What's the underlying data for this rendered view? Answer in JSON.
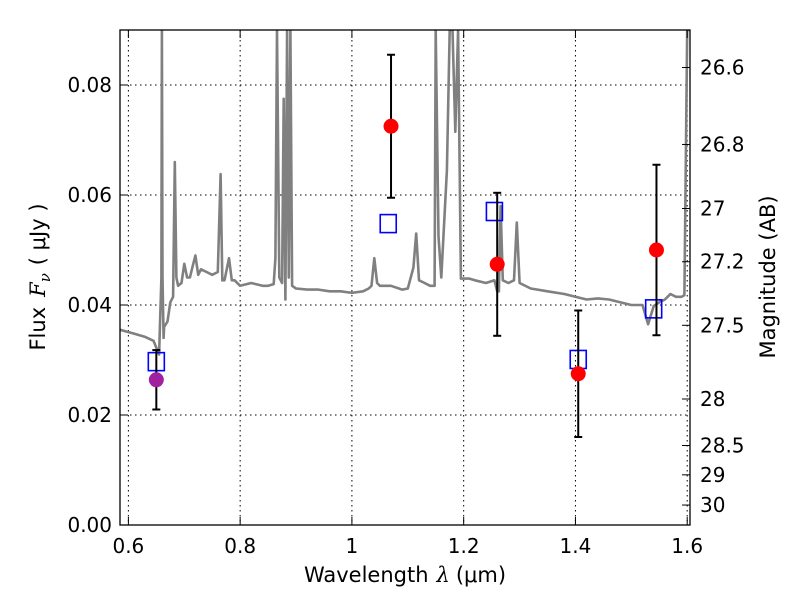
{
  "chart_data": {
    "type": "scatter",
    "xlabel_text": "Wavelength",
    "xlabel_symbol": "λ",
    "xlabel_unit": "(μm)",
    "ylabel_text": "Flux",
    "ylabel_symbol": "F",
    "ylabel_subscript": "ν",
    "ylabel_unit": "( μJy )",
    "y2label": "Magnitude (AB)",
    "xlim": [
      0.585,
      1.605
    ],
    "ylim": [
      0.0,
      0.09
    ],
    "x_ticks": [
      0.6,
      0.8,
      1.0,
      1.2,
      1.4,
      1.6
    ],
    "x_tick_labels": [
      "0.6",
      "0.8",
      "1",
      "1.2",
      "1.4",
      "1.6"
    ],
    "y_ticks": [
      0.0,
      0.02,
      0.04,
      0.06,
      0.08
    ],
    "y_tick_labels": [
      "0.00",
      "0.02",
      "0.04",
      "0.06",
      "0.08"
    ],
    "mag_ticks": [
      26.6,
      26.8,
      27.0,
      27.2,
      27.5,
      28.0,
      28.5,
      29.0,
      30.0
    ],
    "mag_tick_labels": [
      "26.6",
      "26.8",
      "27",
      "27.2",
      "27.5",
      "28",
      "28.5",
      "29",
      "30"
    ],
    "grid": true,
    "colors": {
      "spectrum": "#808080",
      "observed": "#ff0000",
      "observed_optical": "#a020a0",
      "model": "#0000ff",
      "errorbar": "#000000"
    },
    "series": [
      {
        "kind": "observed",
        "points": [
          {
            "x": 0.65,
            "y": 0.0264,
            "err": 0.0054,
            "color": "#a020a0"
          },
          {
            "x": 1.07,
            "y": 0.0725,
            "err": 0.013
          },
          {
            "x": 1.26,
            "y": 0.0474,
            "err": 0.013
          },
          {
            "x": 1.405,
            "y": 0.0275,
            "err": 0.0115
          },
          {
            "x": 1.545,
            "y": 0.05,
            "err": 0.0155
          }
        ]
      },
      {
        "kind": "model_photometry",
        "points": [
          {
            "x": 0.65,
            "y": 0.0297
          },
          {
            "x": 1.065,
            "y": 0.0548
          },
          {
            "x": 1.255,
            "y": 0.057
          },
          {
            "x": 1.405,
            "y": 0.0301
          },
          {
            "x": 1.54,
            "y": 0.0393
          }
        ]
      },
      {
        "kind": "model_spectrum",
        "x": [
          0.585,
          0.61,
          0.63,
          0.645,
          0.655,
          0.659,
          0.66,
          0.661,
          0.663,
          0.664,
          0.67,
          0.675,
          0.68,
          0.683,
          0.686,
          0.689,
          0.695,
          0.7,
          0.705,
          0.71,
          0.715,
          0.72,
          0.725,
          0.73,
          0.74,
          0.75,
          0.76,
          0.765,
          0.768,
          0.772,
          0.78,
          0.785,
          0.79,
          0.8,
          0.82,
          0.84,
          0.85,
          0.86,
          0.863,
          0.866,
          0.87,
          0.875,
          0.878,
          0.881,
          0.884,
          0.887,
          0.89,
          0.893,
          0.9,
          0.92,
          0.94,
          0.96,
          0.98,
          1.0,
          1.02,
          1.03,
          1.035,
          1.04,
          1.045,
          1.05,
          1.07,
          1.09,
          1.1,
          1.11,
          1.115,
          1.12,
          1.13,
          1.14,
          1.148,
          1.15,
          1.155,
          1.16,
          1.17,
          1.175,
          1.18,
          1.185,
          1.19,
          1.195,
          1.2,
          1.21,
          1.22,
          1.24,
          1.255,
          1.26,
          1.263,
          1.266,
          1.27,
          1.28,
          1.29,
          1.295,
          1.3,
          1.32,
          1.35,
          1.38,
          1.4,
          1.42,
          1.44,
          1.46,
          1.48,
          1.5,
          1.52,
          1.53,
          1.54,
          1.55,
          1.56,
          1.57,
          1.58,
          1.59,
          1.595,
          1.6,
          1.605
        ],
        "y": [
          0.0355,
          0.0348,
          0.0342,
          0.0335,
          0.031,
          0.045,
          0.09,
          0.045,
          0.034,
          0.036,
          0.037,
          0.0405,
          0.0415,
          0.066,
          0.045,
          0.0435,
          0.044,
          0.0475,
          0.045,
          0.045,
          0.047,
          0.049,
          0.0455,
          0.0465,
          0.046,
          0.0455,
          0.046,
          0.0638,
          0.0445,
          0.0445,
          0.0485,
          0.0445,
          0.0445,
          0.0435,
          0.044,
          0.0435,
          0.0435,
          0.0438,
          0.0485,
          0.09,
          0.045,
          0.044,
          0.0775,
          0.041,
          0.09,
          0.045,
          0.09,
          0.0435,
          0.043,
          0.0428,
          0.0428,
          0.0425,
          0.0425,
          0.0422,
          0.0425,
          0.043,
          0.0435,
          0.0485,
          0.044,
          0.0435,
          0.0435,
          0.0428,
          0.043,
          0.0468,
          0.053,
          0.0445,
          0.044,
          0.0435,
          0.0435,
          0.09,
          0.0525,
          0.045,
          0.0645,
          0.09,
          0.09,
          0.0715,
          0.09,
          0.0448,
          0.0448,
          0.0448,
          0.0445,
          0.044,
          0.0445,
          0.0425,
          0.0425,
          0.058,
          0.0445,
          0.044,
          0.0445,
          0.055,
          0.044,
          0.043,
          0.0425,
          0.042,
          0.0415,
          0.041,
          0.0412,
          0.041,
          0.0405,
          0.04,
          0.04,
          0.0365,
          0.0398,
          0.0405,
          0.041,
          0.042,
          0.0415,
          0.0415,
          0.0418,
          0.09,
          0.09
        ]
      }
    ]
  }
}
